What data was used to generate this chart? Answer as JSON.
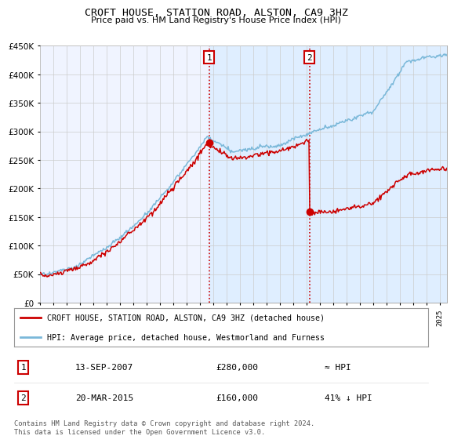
{
  "title": "CROFT HOUSE, STATION ROAD, ALSTON, CA9 3HZ",
  "subtitle": "Price paid vs. HM Land Registry's House Price Index (HPI)",
  "legend_line1": "CROFT HOUSE, STATION ROAD, ALSTON, CA9 3HZ (detached house)",
  "legend_line2": "HPI: Average price, detached house, Westmorland and Furness",
  "footnote": "Contains HM Land Registry data © Crown copyright and database right 2024.\nThis data is licensed under the Open Government Licence v3.0.",
  "table": [
    {
      "num": "1",
      "date": "13-SEP-2007",
      "price": "£280,000",
      "rel": "≈ HPI"
    },
    {
      "num": "2",
      "date": "20-MAR-2015",
      "price": "£160,000",
      "rel": "41% ↓ HPI"
    }
  ],
  "sale1_year": 2007.7,
  "sale1_price": 280000,
  "sale2_year": 2015.22,
  "sale2_price": 160000,
  "hpi_color": "#7ab8d9",
  "sale_color": "#cc0000",
  "marker_color": "#cc0000",
  "shade_color": "#ddeeff",
  "ylim_max": 450000,
  "xlim_start": 1995.0,
  "xlim_end": 2025.5,
  "bg_color": "#f0f4ff",
  "grid_color": "#cccccc",
  "label_box_color": "#cc0000"
}
